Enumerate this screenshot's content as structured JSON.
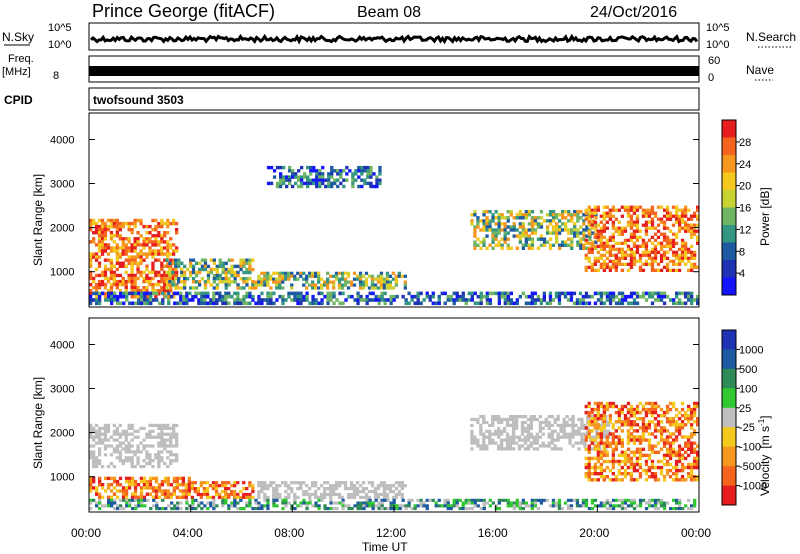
{
  "header": {
    "station": "Prince George (fitACF)",
    "beam": "Beam 08",
    "date": "24/Oct/2016"
  },
  "chart_data": [
    {
      "type": "line",
      "panel": "noise",
      "left_label": "N.Sky",
      "right_label": "N.Search",
      "left_ticks": [
        "10^5",
        "10^0"
      ],
      "right_ticks": [
        "10^5",
        "10^0"
      ],
      "scale": "log",
      "series": []
    },
    {
      "type": "bar",
      "panel": "frequency",
      "left_label_lines": [
        "Freq.",
        "[MHz]"
      ],
      "right_label": "Nave",
      "left_ticks": [
        "8"
      ],
      "right_ticks": [
        "60",
        "0"
      ],
      "series": []
    },
    {
      "type": "table",
      "panel": "cpid",
      "left_label": "CPID",
      "value": "twofsound 3503"
    },
    {
      "type": "heatmap",
      "panel": "power",
      "ylabel": "Slant Range [km]",
      "xlabel": "",
      "ylim": [
        200,
        4600
      ],
      "yticks": [
        "4000",
        "3000",
        "2000",
        "1000"
      ],
      "yticks_values": [
        4000,
        3000,
        2000,
        1000
      ],
      "xlim": [
        0,
        24
      ],
      "colorbar": {
        "label": "Power [dB]",
        "ticks": [
          "28",
          "24",
          "20",
          "16",
          "12",
          "8",
          "4"
        ],
        "colors": [
          "#e61e1e",
          "#f5641e",
          "#f5961e",
          "#f5c81e",
          "#c8d232",
          "#6eb464",
          "#329682",
          "#1e5aa0",
          "#1e32b4",
          "#1414ff"
        ]
      },
      "regions": [
        {
          "t0": 0.0,
          "t1": 3.5,
          "r0": 400,
          "r1": 2200,
          "level": "high"
        },
        {
          "t0": 3.0,
          "t1": 6.5,
          "r0": 600,
          "r1": 1300,
          "level": "mid"
        },
        {
          "t0": 6.5,
          "t1": 12.5,
          "r0": 600,
          "r1": 1000,
          "level": "mid"
        },
        {
          "t0": 0.0,
          "t1": 24.0,
          "r0": 250,
          "r1": 550,
          "level": "low"
        },
        {
          "t0": 15.0,
          "t1": 20.0,
          "r0": 1500,
          "r1": 2400,
          "level": "mid"
        },
        {
          "t0": 19.5,
          "t1": 24.0,
          "r0": 1000,
          "r1": 2500,
          "level": "high"
        },
        {
          "t0": 7.0,
          "t1": 11.5,
          "r0": 2900,
          "r1": 3400,
          "level": "low"
        }
      ]
    },
    {
      "type": "heatmap",
      "panel": "velocity",
      "ylabel": "Slant Range [km]",
      "xlabel": "Time UT",
      "ylim": [
        200,
        4600
      ],
      "yticks": [
        "4000",
        "3000",
        "2000",
        "1000"
      ],
      "yticks_values": [
        4000,
        3000,
        2000,
        1000
      ],
      "xlim": [
        0,
        24
      ],
      "xticks": [
        "00:00",
        "04:00",
        "08:00",
        "12:00",
        "16:00",
        "20:00",
        "00:00"
      ],
      "colorbar": {
        "label": "Velocity",
        "label_unit": "[m s",
        "label_exp": "-1",
        "label_close": "]",
        "ticks": [
          "1000",
          "500",
          "100",
          "25",
          "-25",
          "-100",
          "-500",
          "-1000"
        ],
        "colors": [
          "#1e32b4",
          "#1e5aa0",
          "#2e8b57",
          "#32c832",
          "#bebebe",
          "#f5c81e",
          "#f5961e",
          "#f5641e",
          "#e61e1e"
        ]
      },
      "regions": [
        {
          "t0": 0.0,
          "t1": 3.5,
          "r0": 1200,
          "r1": 2200,
          "level": "ground"
        },
        {
          "t0": 0.0,
          "t1": 4.0,
          "r0": 500,
          "r1": 1000,
          "level": "away"
        },
        {
          "t0": 4.0,
          "t1": 6.5,
          "r0": 500,
          "r1": 900,
          "level": "away"
        },
        {
          "t0": 6.5,
          "t1": 12.5,
          "r0": 500,
          "r1": 900,
          "level": "ground"
        },
        {
          "t0": 0.0,
          "t1": 24.0,
          "r0": 250,
          "r1": 500,
          "level": "toward"
        },
        {
          "t0": 15.0,
          "t1": 20.5,
          "r0": 1600,
          "r1": 2400,
          "level": "ground"
        },
        {
          "t0": 19.5,
          "t1": 24.0,
          "r0": 900,
          "r1": 2700,
          "level": "away"
        }
      ]
    }
  ]
}
